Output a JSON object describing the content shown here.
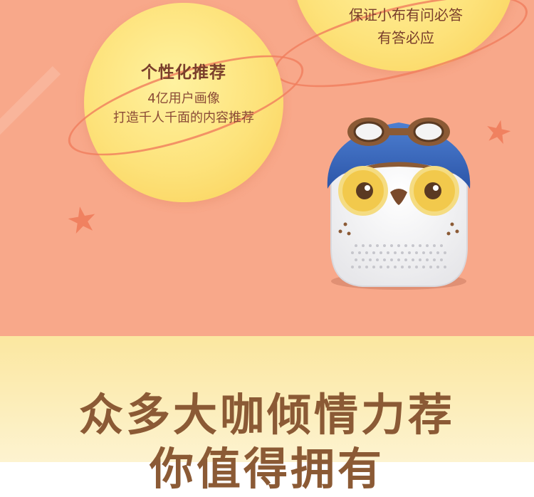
{
  "feature_recommend": {
    "title": "个性化推荐",
    "line1": "4亿用户画像",
    "line2": "打造千人千面的内容推荐"
  },
  "feature_answer": {
    "line1": "保证小布有问必答",
    "line2": "有答必应"
  },
  "headline": {
    "line1": "众多大咖倾情力荐",
    "line2": "你值得拥有"
  },
  "colors": {
    "background_top": "#f8a88a",
    "circle": "#fde27a",
    "accent": "#f07d5c",
    "headline": "#8b5a35"
  }
}
